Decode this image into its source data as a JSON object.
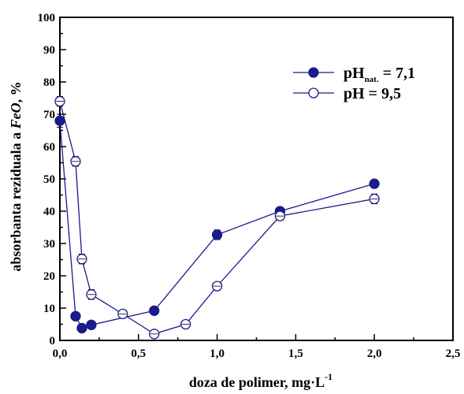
{
  "chart_data": {
    "type": "line",
    "xlabel": "doza de polimer, mg·L",
    "xlabel_sup": "-1",
    "ylabel_pre": "absorbanta reziduala a ",
    "ylabel_italic": "FeO",
    "ylabel_post": ", %",
    "xlim": [
      0,
      2.5
    ],
    "ylim": [
      0,
      100
    ],
    "x_ticks": [
      0,
      0.5,
      1.0,
      1.5,
      2.0,
      2.5
    ],
    "x_tick_labels": [
      "0,0",
      "0,5",
      "1,0",
      "1,5",
      "2,0",
      "2,5"
    ],
    "y_ticks": [
      0,
      10,
      20,
      30,
      40,
      50,
      60,
      70,
      80,
      90,
      100
    ],
    "y_tick_labels": [
      "0",
      "10",
      "20",
      "30",
      "40",
      "50",
      "60",
      "70",
      "80",
      "90",
      "100"
    ],
    "grid": false,
    "legend_position": "top-right",
    "series": [
      {
        "name_main": "pH",
        "name_sub": "nat.",
        "name_tail": " = 7,1",
        "marker": "filled-circle",
        "color": "#1a1a8c",
        "points": [
          {
            "x": 0.0,
            "y": 68,
            "err": 2.0
          },
          {
            "x": 0.1,
            "y": 7.5,
            "err": 1.0
          },
          {
            "x": 0.14,
            "y": 3.8,
            "err": 0.6
          },
          {
            "x": 0.2,
            "y": 4.8,
            "err": 0.6
          },
          {
            "x": 0.6,
            "y": 9.2,
            "err": 0.8
          },
          {
            "x": 1.0,
            "y": 32.7,
            "err": 1.5
          },
          {
            "x": 1.4,
            "y": 40.0,
            "err": 1.0
          },
          {
            "x": 2.0,
            "y": 48.5,
            "err": 1.0
          }
        ]
      },
      {
        "name_main": "pH = 9,5",
        "name_sub": "",
        "name_tail": "",
        "marker": "open-circle",
        "color": "#1a1a8c",
        "points": [
          {
            "x": 0.0,
            "y": 74,
            "err": 1.5
          },
          {
            "x": 0.1,
            "y": 55.4,
            "err": 1.5
          },
          {
            "x": 0.14,
            "y": 25.2,
            "err": 1.5
          },
          {
            "x": 0.2,
            "y": 14.2,
            "err": 1.5
          },
          {
            "x": 0.4,
            "y": 8.2,
            "err": 1.0
          },
          {
            "x": 0.6,
            "y": 2.0,
            "err": 0.8
          },
          {
            "x": 0.8,
            "y": 5.0,
            "err": 1.0
          },
          {
            "x": 1.0,
            "y": 16.8,
            "err": 1.2
          },
          {
            "x": 1.4,
            "y": 38.5,
            "err": 1.2
          },
          {
            "x": 2.0,
            "y": 43.8,
            "err": 1.5
          }
        ]
      }
    ]
  }
}
